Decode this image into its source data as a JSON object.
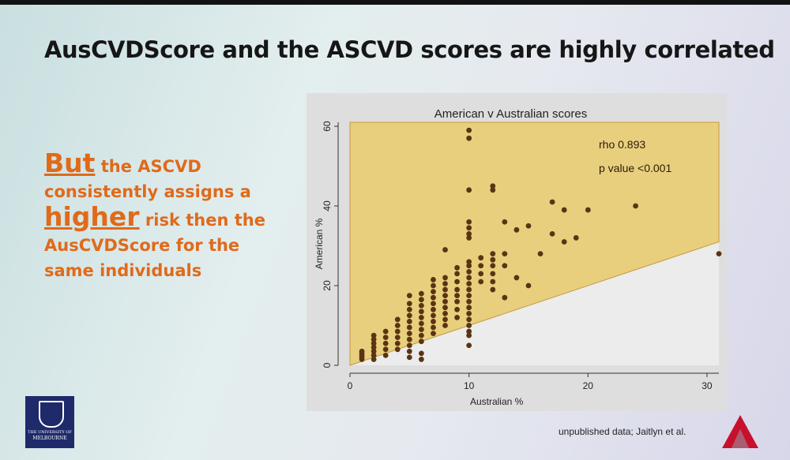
{
  "slide": {
    "title": "AusCVDScore and the ASCVD scores are highly correlated",
    "text": {
      "but": "But",
      "line1_rest": " the ASCVD",
      "line2": "consistently assigns a",
      "higher": "higher",
      "line3_rest": " risk then the",
      "line4": "AusCVDScore for the",
      "line5": "same individuals"
    },
    "logo_text": [
      "THE UNIVERSITY OF",
      "MELBOURNE"
    ],
    "credit": "unpublished data; Jaitlyn et al.",
    "brand_icon": "red-triangle-logo-icon"
  },
  "colors": {
    "title_text": "#161616",
    "orange_text": "#e06a1a",
    "shade_fill": "#e8cf7e",
    "shade_stroke": "#c79a3d",
    "point": "#5a3412"
  },
  "chart_data": {
    "type": "scatter",
    "title": "American v Australian scores",
    "xlabel": "Australian %",
    "ylabel": "American %",
    "xlim": [
      0,
      31
    ],
    "ylim": [
      0,
      61
    ],
    "xticks": [
      0,
      10,
      20,
      30
    ],
    "yticks": [
      0,
      20,
      40,
      60
    ],
    "annotations": [
      "rho 0.893",
      "p value <0.001"
    ],
    "shaded_region": {
      "description": "region above line",
      "line": [
        [
          0,
          0
        ],
        [
          31,
          31
        ]
      ]
    },
    "series": [
      {
        "points": [
          [
            1,
            1.5
          ],
          [
            1,
            2
          ],
          [
            1,
            2.5
          ],
          [
            1,
            3
          ],
          [
            1,
            3.5
          ],
          [
            2,
            1.5
          ],
          [
            2,
            2.5
          ],
          [
            2,
            3.5
          ],
          [
            2,
            4.5
          ],
          [
            2,
            5.5
          ],
          [
            2,
            6.5
          ],
          [
            2,
            7.5
          ],
          [
            3,
            2.5
          ],
          [
            3,
            4
          ],
          [
            3,
            5.5
          ],
          [
            3,
            7
          ],
          [
            3,
            8.5
          ],
          [
            4,
            4
          ],
          [
            4,
            5.5
          ],
          [
            4,
            7
          ],
          [
            4,
            8.5
          ],
          [
            4,
            10
          ],
          [
            4,
            11.5
          ],
          [
            5,
            2
          ],
          [
            5,
            3.5
          ],
          [
            5,
            5
          ],
          [
            5,
            6.5
          ],
          [
            5,
            8
          ],
          [
            5,
            9.5
          ],
          [
            5,
            11
          ],
          [
            5,
            12.5
          ],
          [
            5,
            14
          ],
          [
            5,
            15.5
          ],
          [
            5,
            17.5
          ],
          [
            6,
            1.5
          ],
          [
            6,
            3
          ],
          [
            6,
            6
          ],
          [
            6,
            7.5
          ],
          [
            6,
            9
          ],
          [
            6,
            10.5
          ],
          [
            6,
            12
          ],
          [
            6,
            13.5
          ],
          [
            6,
            15
          ],
          [
            6,
            16.5
          ],
          [
            6,
            18
          ],
          [
            7,
            8
          ],
          [
            7,
            9.5
          ],
          [
            7,
            11
          ],
          [
            7,
            12.5
          ],
          [
            7,
            14
          ],
          [
            7,
            15.5
          ],
          [
            7,
            17
          ],
          [
            7,
            18.5
          ],
          [
            7,
            20
          ],
          [
            7,
            21.5
          ],
          [
            8,
            10
          ],
          [
            8,
            11.5
          ],
          [
            8,
            13
          ],
          [
            8,
            14.5
          ],
          [
            8,
            16
          ],
          [
            8,
            17.5
          ],
          [
            8,
            19
          ],
          [
            8,
            20.5
          ],
          [
            8,
            22
          ],
          [
            8,
            29
          ],
          [
            9,
            12
          ],
          [
            9,
            14
          ],
          [
            9,
            16
          ],
          [
            9,
            17.5
          ],
          [
            9,
            19
          ],
          [
            9,
            21
          ],
          [
            9,
            23
          ],
          [
            9,
            24.5
          ],
          [
            10,
            5
          ],
          [
            10,
            7.5
          ],
          [
            10,
            8.5
          ],
          [
            10,
            10
          ],
          [
            10,
            11.5
          ],
          [
            10,
            13
          ],
          [
            10,
            14.5
          ],
          [
            10,
            16
          ],
          [
            10,
            17.5
          ],
          [
            10,
            19
          ],
          [
            10,
            20.5
          ],
          [
            10,
            22
          ],
          [
            10,
            23.5
          ],
          [
            10,
            25
          ],
          [
            10,
            26
          ],
          [
            10,
            32
          ],
          [
            10,
            33
          ],
          [
            10,
            34.5
          ],
          [
            10,
            36
          ],
          [
            10,
            44
          ],
          [
            10,
            57
          ],
          [
            10,
            59
          ],
          [
            11,
            21
          ],
          [
            11,
            23
          ],
          [
            11,
            25
          ],
          [
            11,
            27
          ],
          [
            12,
            19
          ],
          [
            12,
            21
          ],
          [
            12,
            23
          ],
          [
            12,
            25
          ],
          [
            12,
            26.5
          ],
          [
            12,
            28
          ],
          [
            12,
            44
          ],
          [
            12,
            45
          ],
          [
            13,
            17
          ],
          [
            13,
            25
          ],
          [
            13,
            28
          ],
          [
            13,
            36
          ],
          [
            14,
            22
          ],
          [
            14,
            34
          ],
          [
            15,
            20
          ],
          [
            15,
            35
          ],
          [
            16,
            28
          ],
          [
            17,
            33
          ],
          [
            17,
            41
          ],
          [
            18,
            31
          ],
          [
            18,
            39
          ],
          [
            19,
            32
          ],
          [
            20,
            39
          ],
          [
            24,
            40
          ],
          [
            31,
            28
          ]
        ]
      }
    ]
  }
}
